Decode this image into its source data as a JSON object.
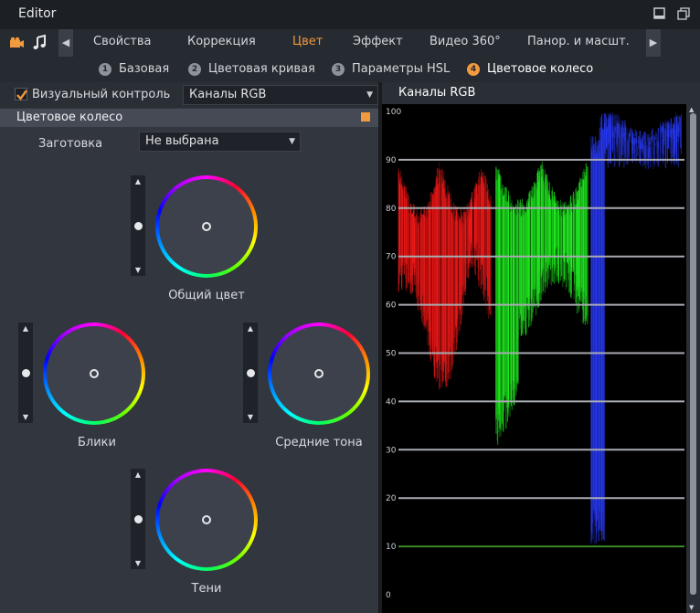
{
  "window": {
    "title": "Editor"
  },
  "nav": {
    "tabs": [
      {
        "label": "Свойства",
        "active": false
      },
      {
        "label": "Коррекция",
        "active": false
      },
      {
        "label": "Цвет",
        "active": true
      },
      {
        "label": "Эффект",
        "active": false
      },
      {
        "label": "Видео 360°",
        "active": false
      },
      {
        "label": "Панор. и масшт.",
        "active": false
      }
    ],
    "icons": [
      "video-icon",
      "music-icon"
    ]
  },
  "subtabs": [
    {
      "num": "1",
      "label": "Базовая",
      "active": false
    },
    {
      "num": "2",
      "label": "Цветовая кривая",
      "active": false
    },
    {
      "num": "3",
      "label": "Параметры HSL",
      "active": false
    },
    {
      "num": "4",
      "label": "Цветовое колесо",
      "active": true
    }
  ],
  "visual_control": {
    "label": "Визуальный контроль",
    "checked": true,
    "channel": "Каналы RGB"
  },
  "section": {
    "title": "Цветовое колесо"
  },
  "preset": {
    "label": "Заготовка",
    "value": "Не выбрана"
  },
  "wheels": [
    {
      "label": "Общий цвет",
      "slider_level": 0.5
    },
    {
      "label": "Блики",
      "slider_level": 0.5
    },
    {
      "label": "Средние тона",
      "slider_level": 0.5
    },
    {
      "label": "Тени",
      "slider_level": 0.5
    }
  ],
  "scope": {
    "title": "Каналы RGB",
    "axis_labels": [
      "100",
      "90",
      "80",
      "70",
      "60",
      "50",
      "40",
      "30",
      "20",
      "10",
      "0"
    ],
    "colors": {
      "red": "#ff1a1a",
      "green": "#22ff22",
      "blue": "#2a3cff",
      "accent": "#f19a3e"
    }
  }
}
